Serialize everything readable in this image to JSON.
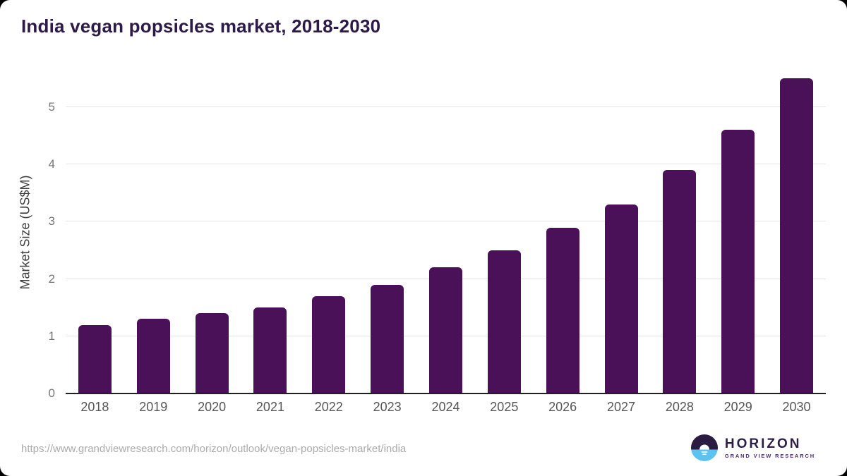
{
  "header": {
    "title": "India vegan popsicles market, 2018-2030"
  },
  "chart_data": {
    "type": "bar",
    "title": "India vegan popsicles market, 2018-2030",
    "categories": [
      "2018",
      "2019",
      "2020",
      "2021",
      "2022",
      "2023",
      "2024",
      "2025",
      "2026",
      "2027",
      "2028",
      "2029",
      "2030"
    ],
    "values": [
      1.2,
      1.3,
      1.4,
      1.5,
      1.7,
      1.9,
      2.2,
      2.5,
      2.9,
      3.3,
      3.9,
      4.6,
      5.5
    ],
    "xlabel": "",
    "ylabel": "Market Size (US$M)",
    "yticks": [
      0,
      1,
      2,
      3,
      4,
      5
    ],
    "ylim": [
      0,
      5.64
    ],
    "grid": "horizontal",
    "legend": "none",
    "bar_color": "#4a1159"
  },
  "footer": {
    "source_url": "https://www.grandviewresearch.com/horizon/outlook/vegan-popsicles-market/india",
    "logo": {
      "name": "HORIZON",
      "subtitle": "GRAND VIEW RESEARCH",
      "color_dark": "#2b1b40",
      "color_blue": "#5cc3f0"
    }
  }
}
